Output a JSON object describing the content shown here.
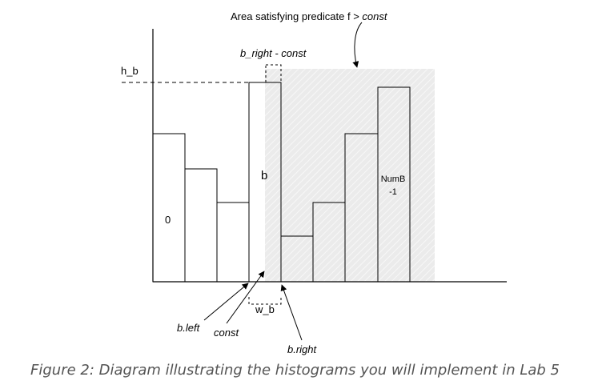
{
  "diagram": {
    "title": {
      "prefix": "Area satisfying predicate f > ",
      "suffix": "const"
    },
    "labels": {
      "h_b": "h_b",
      "b_right_minus_const": "b_right - const",
      "bin_zero": "0",
      "bin_b": "b",
      "bin_last_line1": "NumB",
      "bin_last_line2": "-1",
      "w_b": "w_b",
      "b_left": "b.left",
      "const": "const",
      "b_right": "b.right"
    },
    "colors": {
      "shaded_region": "#ebebeb",
      "stroke": "#000000",
      "caption": "#555555"
    }
  },
  "caption": "Figure 2: Diagram illustrating the histograms you will implement in Lab 5"
}
